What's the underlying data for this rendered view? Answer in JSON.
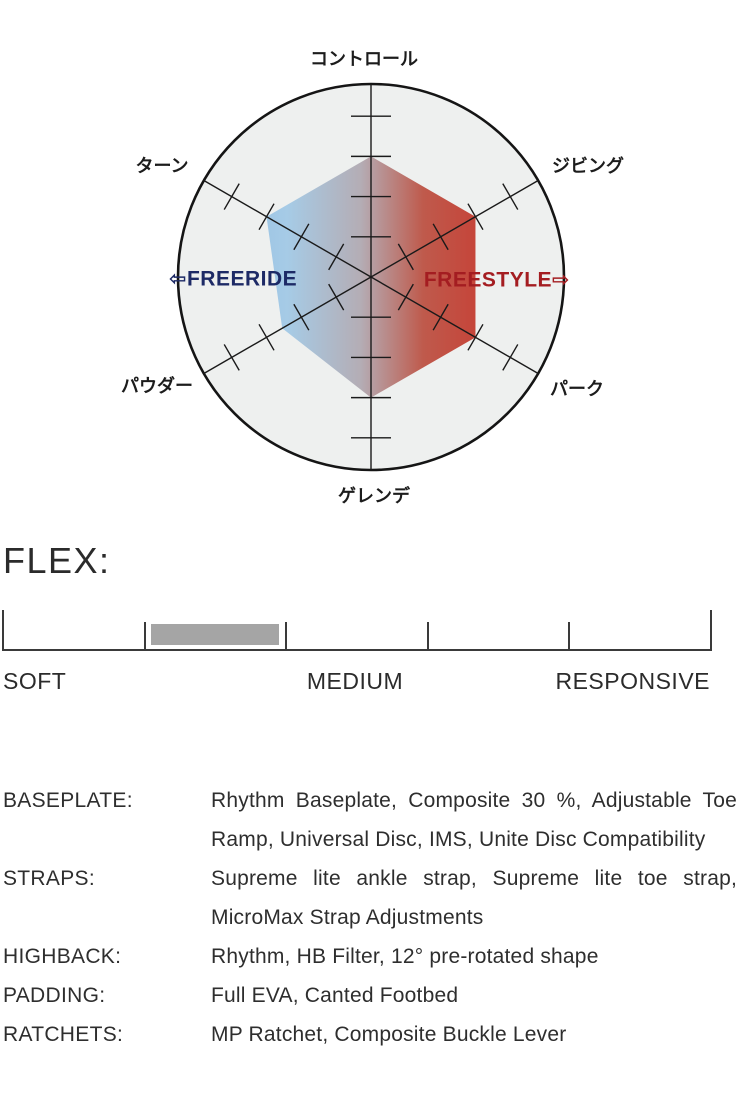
{
  "chart_data": [
    {
      "type": "radar",
      "axes": [
        {
          "label": "コントロール",
          "value": 3
        },
        {
          "label": "ジビング",
          "value": 3
        },
        {
          "label": "パーク",
          "value": 3
        },
        {
          "label": "ゲレンデ",
          "value": 3
        },
        {
          "label": "パウダー",
          "value": 2.55
        },
        {
          "label": "ターン",
          "value": 3
        }
      ],
      "scale": {
        "ticks": 4,
        "tick_unit": 1,
        "outer_ring": 4.8
      },
      "annotations": [
        {
          "text": "⇦FREERIDE",
          "color": "#1d2a66",
          "side": "left"
        },
        {
          "text": "FREESTYLE⇨",
          "color": "#a41d21",
          "side": "right"
        }
      ],
      "colors": {
        "ring_fill": "#eef0ef",
        "ring_stroke": "#151515",
        "axis_stroke": "#1a1a1a",
        "gradient": [
          {
            "offset": 0.0,
            "color": "#a0c7e5"
          },
          {
            "offset": 0.1,
            "color": "#a6cbe6"
          },
          {
            "offset": 0.45,
            "color": "#b4adb5"
          },
          {
            "offset": 0.75,
            "color": "#bf5a4c"
          },
          {
            "offset": 1.0,
            "color": "#c5453a"
          }
        ]
      },
      "legend": "none",
      "grid": "radial ticks, 4 per axis, outer circle ring"
    },
    {
      "type": "linear-gauge",
      "title": "FLEX:",
      "tick_labels": [
        "SOFT",
        "MEDIUM",
        "RESPONSIVE"
      ],
      "segments": 5,
      "active_from": 1,
      "active_to": 2,
      "bar_color": "#a5a5a5"
    }
  ],
  "specs": {
    "rows": [
      {
        "label": "BASEPLATE:",
        "lines": [
          "Rhythm Baseplate, Composite 30 %, Adjustable Toe",
          "Ramp, Universal Disc, IMS, Unite Disc Compatibility"
        ]
      },
      {
        "label": "STRAPS:",
        "lines": [
          "Supreme lite ankle strap, Supreme lite toe strap,",
          "MicroMax Strap Adjustments"
        ]
      },
      {
        "label": "HIGHBACK:",
        "lines": [
          "Rhythm, HB Filter, 12° pre-rotated shape"
        ]
      },
      {
        "label": "PADDING:",
        "lines": [
          "Full EVA, Canted Footbed"
        ]
      },
      {
        "label": "RATCHETS:",
        "lines": [
          "MP Ratchet, Composite Buckle Lever"
        ]
      }
    ]
  }
}
